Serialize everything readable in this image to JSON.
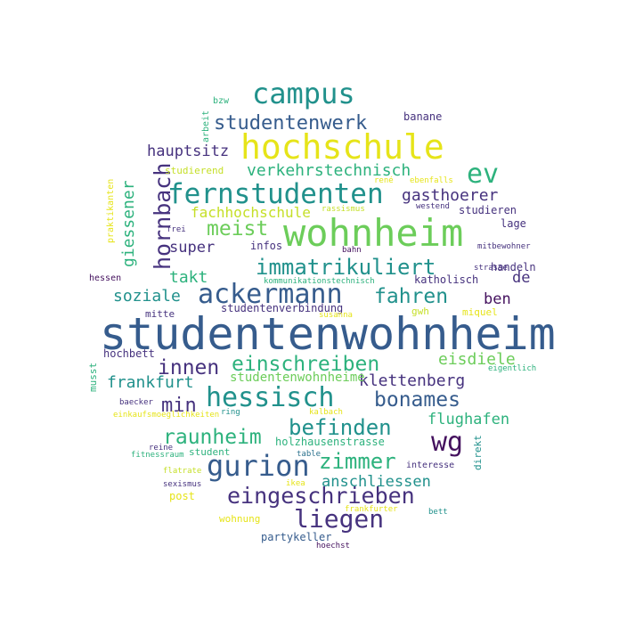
{
  "colors": {
    "background": "#ffffff",
    "palette": {
      "purple": "#44115e",
      "indigo": "#46327e",
      "blue": "#365c8d",
      "steel": "#2c728e",
      "teal": "#21918c",
      "green": "#2db27d",
      "lime": "#6ccd5a",
      "yellow": "#c5df27",
      "bright": "#e6e419"
    }
  },
  "words": [
    {
      "text": "studentenwohnheim",
      "c": "blue"
    },
    {
      "text": "wohnheim",
      "c": "lime"
    },
    {
      "text": "hochschule",
      "c": "bright"
    },
    {
      "text": "campus",
      "c": "teal"
    },
    {
      "text": "fernstudenten",
      "c": "teal"
    },
    {
      "text": "ackermann",
      "c": "blue"
    },
    {
      "text": "hessisch",
      "c": "teal"
    },
    {
      "text": "gurion",
      "c": "blue"
    },
    {
      "text": "studentenwerk",
      "c": "blue"
    },
    {
      "text": "ev",
      "c": "green"
    },
    {
      "text": "wg",
      "c": "purple"
    },
    {
      "text": "immatrikuliert",
      "c": "teal"
    },
    {
      "text": "einschreiben",
      "c": "green"
    },
    {
      "text": "eingeschrieben",
      "c": "indigo"
    },
    {
      "text": "zimmer",
      "c": "green"
    },
    {
      "text": "liegen",
      "c": "indigo"
    },
    {
      "text": "befinden",
      "c": "teal"
    },
    {
      "text": "bonames",
      "c": "blue"
    },
    {
      "text": "fahren",
      "c": "teal"
    },
    {
      "text": "raunheim",
      "c": "green"
    },
    {
      "text": "innen",
      "c": "indigo"
    },
    {
      "text": "meist",
      "c": "lime"
    },
    {
      "text": "hornbach",
      "c": "indigo"
    },
    {
      "text": "min",
      "c": "indigo"
    },
    {
      "text": "hauptsitz",
      "c": "indigo"
    },
    {
      "text": "verkehrstechnisch",
      "c": "green"
    },
    {
      "text": "gasthoerer",
      "c": "indigo"
    },
    {
      "text": "fachhochschule",
      "c": "yellow"
    },
    {
      "text": "super",
      "c": "indigo"
    },
    {
      "text": "takt",
      "c": "green"
    },
    {
      "text": "soziale",
      "c": "teal"
    },
    {
      "text": "giessener",
      "c": "green"
    },
    {
      "text": "eisdiele",
      "c": "lime"
    },
    {
      "text": "klettenberg",
      "c": "indigo"
    },
    {
      "text": "frankfurt",
      "c": "teal"
    },
    {
      "text": "flughafen",
      "c": "green"
    },
    {
      "text": "anschliessen",
      "c": "teal"
    },
    {
      "text": "studentenwohnheime",
      "c": "lime"
    },
    {
      "text": "ben",
      "c": "purple"
    },
    {
      "text": "de",
      "c": "indigo"
    },
    {
      "text": "holzhausenstrasse",
      "c": "green"
    },
    {
      "text": "studentenverbindung",
      "c": "indigo"
    },
    {
      "text": "katholisch",
      "c": "indigo"
    },
    {
      "text": "infos",
      "c": "indigo"
    },
    {
      "text": "studieren",
      "c": "indigo"
    },
    {
      "text": "banane",
      "c": "indigo"
    },
    {
      "text": "studierend",
      "c": "yellow"
    },
    {
      "text": "lage",
      "c": "indigo"
    },
    {
      "text": "handeln",
      "c": "indigo"
    },
    {
      "text": "miquel",
      "c": "bright"
    },
    {
      "text": "gwh",
      "c": "yellow"
    },
    {
      "text": "mitte",
      "c": "indigo"
    },
    {
      "text": "hochbett",
      "c": "indigo"
    },
    {
      "text": "musst",
      "c": "green"
    },
    {
      "text": "student",
      "c": "green"
    },
    {
      "text": "wohnung",
      "c": "bright"
    },
    {
      "text": "partykeller",
      "c": "blue"
    },
    {
      "text": "post",
      "c": "bright"
    },
    {
      "text": "direkt",
      "c": "teal"
    },
    {
      "text": "interesse",
      "c": "indigo"
    },
    {
      "text": "hessen",
      "c": "purple"
    },
    {
      "text": "bzw",
      "c": "green"
    },
    {
      "text": "arbeit",
      "c": "green"
    },
    {
      "text": "praktikanten",
      "c": "bright"
    },
    {
      "text": "frei",
      "c": "indigo"
    },
    {
      "text": "westend",
      "c": "indigo"
    },
    {
      "text": "rassismus",
      "c": "yellow"
    },
    {
      "text": "rené",
      "c": "bright"
    },
    {
      "text": "ebenfalls",
      "c": "bright"
    },
    {
      "text": "bahn",
      "c": "purple"
    },
    {
      "text": "mitbewohner",
      "c": "indigo"
    },
    {
      "text": "strasse",
      "c": "indigo"
    },
    {
      "text": "kommunikationstechnisch",
      "c": "green"
    },
    {
      "text": "susanna",
      "c": "bright"
    },
    {
      "text": "eigentlich",
      "c": "green"
    },
    {
      "text": "baecker",
      "c": "indigo"
    },
    {
      "text": "ring",
      "c": "teal"
    },
    {
      "text": "kalbach",
      "c": "bright"
    },
    {
      "text": "einkaufsmoeglichkeiten",
      "c": "bright"
    },
    {
      "text": "reine",
      "c": "indigo"
    },
    {
      "text": "fitnessraum",
      "c": "green"
    },
    {
      "text": "table",
      "c": "steel"
    },
    {
      "text": "flatrate",
      "c": "yellow"
    },
    {
      "text": "sexismus",
      "c": "indigo"
    },
    {
      "text": "ikea",
      "c": "bright"
    },
    {
      "text": "frankfurter",
      "c": "bright"
    },
    {
      "text": "bett",
      "c": "teal"
    },
    {
      "text": "hoechst",
      "c": "purple"
    }
  ]
}
